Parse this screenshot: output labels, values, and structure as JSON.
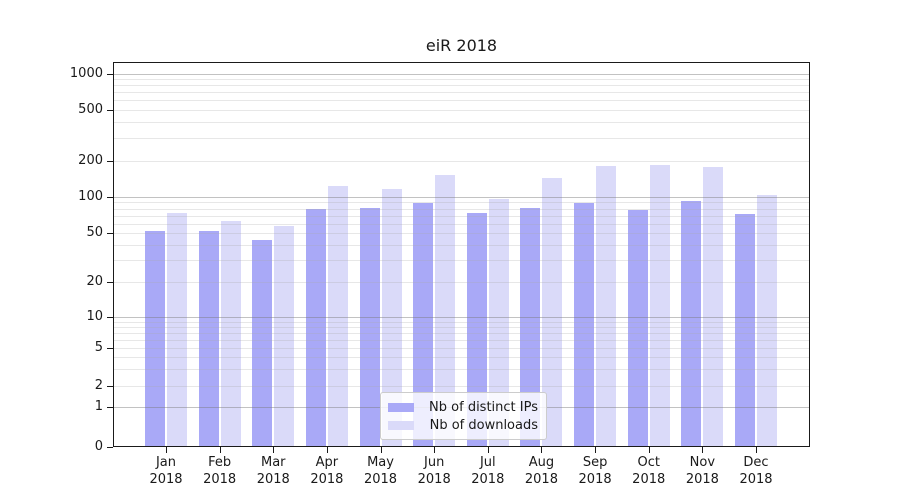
{
  "chart_data": {
    "type": "bar",
    "title": "eiR 2018",
    "categories": [
      "Jan",
      "Feb",
      "Mar",
      "Apr",
      "May",
      "Jun",
      "Jul",
      "Aug",
      "Sep",
      "Oct",
      "Nov",
      "Dec"
    ],
    "category_year_label": "2018",
    "series": [
      {
        "name": "Nb of distinct IPs",
        "color": "#a9a9f7",
        "values": [
          52,
          52,
          44,
          79,
          81,
          89,
          73,
          81,
          89,
          78,
          92,
          72
        ]
      },
      {
        "name": "Nb of downloads",
        "color": "#dadaf9",
        "values": [
          74,
          63,
          57,
          123,
          116,
          151,
          96,
          145,
          182,
          185,
          178,
          103
        ]
      }
    ],
    "xlabel": "",
    "ylabel": "",
    "yscale": "symlog",
    "yticks": [
      0,
      1,
      2,
      5,
      10,
      20,
      50,
      100,
      200,
      500,
      1000
    ],
    "ylim": [
      0,
      1200
    ],
    "grid": true,
    "legend_position": "lower center"
  }
}
